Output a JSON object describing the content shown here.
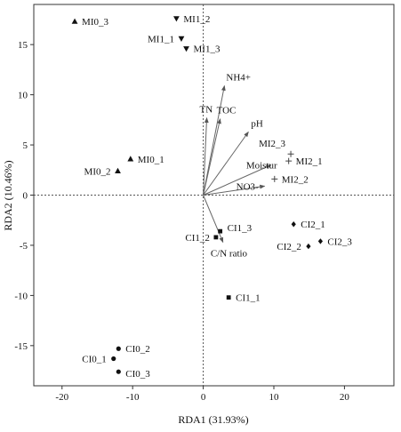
{
  "chart_data": {
    "type": "scatter",
    "title": "",
    "xlabel": "RDA1 (31.93%)",
    "ylabel": "RDA2 (10.46%)",
    "xlim": [
      -24,
      27
    ],
    "ylim": [
      -19,
      19
    ],
    "xticks": [
      "-20",
      "-10",
      "0",
      "10",
      "20"
    ],
    "yticks": [
      "15",
      "10",
      "5",
      "0",
      "-5",
      "-10",
      "-15"
    ],
    "xtick_values": [
      -20,
      -10,
      0,
      10,
      20
    ],
    "ytick_values": [
      15,
      10,
      5,
      0,
      -5,
      -10,
      -15
    ],
    "grid": false,
    "zero_lines": "dotted",
    "series": [
      {
        "marker": "triangle-up",
        "points": [
          {
            "label": "MI0_3",
            "x": -18.2,
            "y": 17.3
          },
          {
            "label": "MI0_1",
            "x": -10.3,
            "y": 3.6
          },
          {
            "label": "MI0_2",
            "x": -12.1,
            "y": 2.4
          }
        ]
      },
      {
        "marker": "triangle-down",
        "points": [
          {
            "label": "MI1_2",
            "x": -3.8,
            "y": 17.6
          },
          {
            "label": "MI1_1",
            "x": -3.1,
            "y": 15.6
          },
          {
            "label": "MI1_3",
            "x": -2.4,
            "y": 14.6
          }
        ]
      },
      {
        "marker": "plus",
        "points": [
          {
            "label": "MI2_3",
            "x": 12.4,
            "y": 4.1
          },
          {
            "label": "MI2_1",
            "x": 12.1,
            "y": 3.4
          },
          {
            "label": "MI2_2",
            "x": 10.1,
            "y": 1.6
          }
        ]
      },
      {
        "marker": "diamond",
        "points": [
          {
            "label": "CI2_1",
            "x": 12.8,
            "y": -2.9
          },
          {
            "label": "CI2_3",
            "x": 16.6,
            "y": -4.6
          },
          {
            "label": "CI2_2",
            "x": 14.9,
            "y": -5.1
          }
        ]
      },
      {
        "marker": "square",
        "points": [
          {
            "label": "CI1_3",
            "x": 2.4,
            "y": -3.6
          },
          {
            "label": "CI1_2",
            "x": 1.8,
            "y": -4.2
          },
          {
            "label": "CI1_1",
            "x": 3.6,
            "y": -10.2
          }
        ]
      },
      {
        "marker": "circle",
        "points": [
          {
            "label": "CI0_2",
            "x": -12.0,
            "y": -15.3
          },
          {
            "label": "CI0_1",
            "x": -12.7,
            "y": -16.3
          },
          {
            "label": "CI0_3",
            "x": -12.0,
            "y": -17.6
          }
        ]
      }
    ],
    "vectors": [
      {
        "label": "NH4+",
        "x": 3.0,
        "y": 10.9
      },
      {
        "label": "TN",
        "x": 0.5,
        "y": 7.7
      },
      {
        "label": "TOC",
        "x": 2.4,
        "y": 7.6
      },
      {
        "label": "pH",
        "x": 6.4,
        "y": 6.3
      },
      {
        "label": "Moistur",
        "x": 9.6,
        "y": 3.0
      },
      {
        "label": "NO3-",
        "x": 8.7,
        "y": 0.9
      },
      {
        "label": "C/N ratio",
        "x": 2.8,
        "y": -4.7
      }
    ]
  }
}
